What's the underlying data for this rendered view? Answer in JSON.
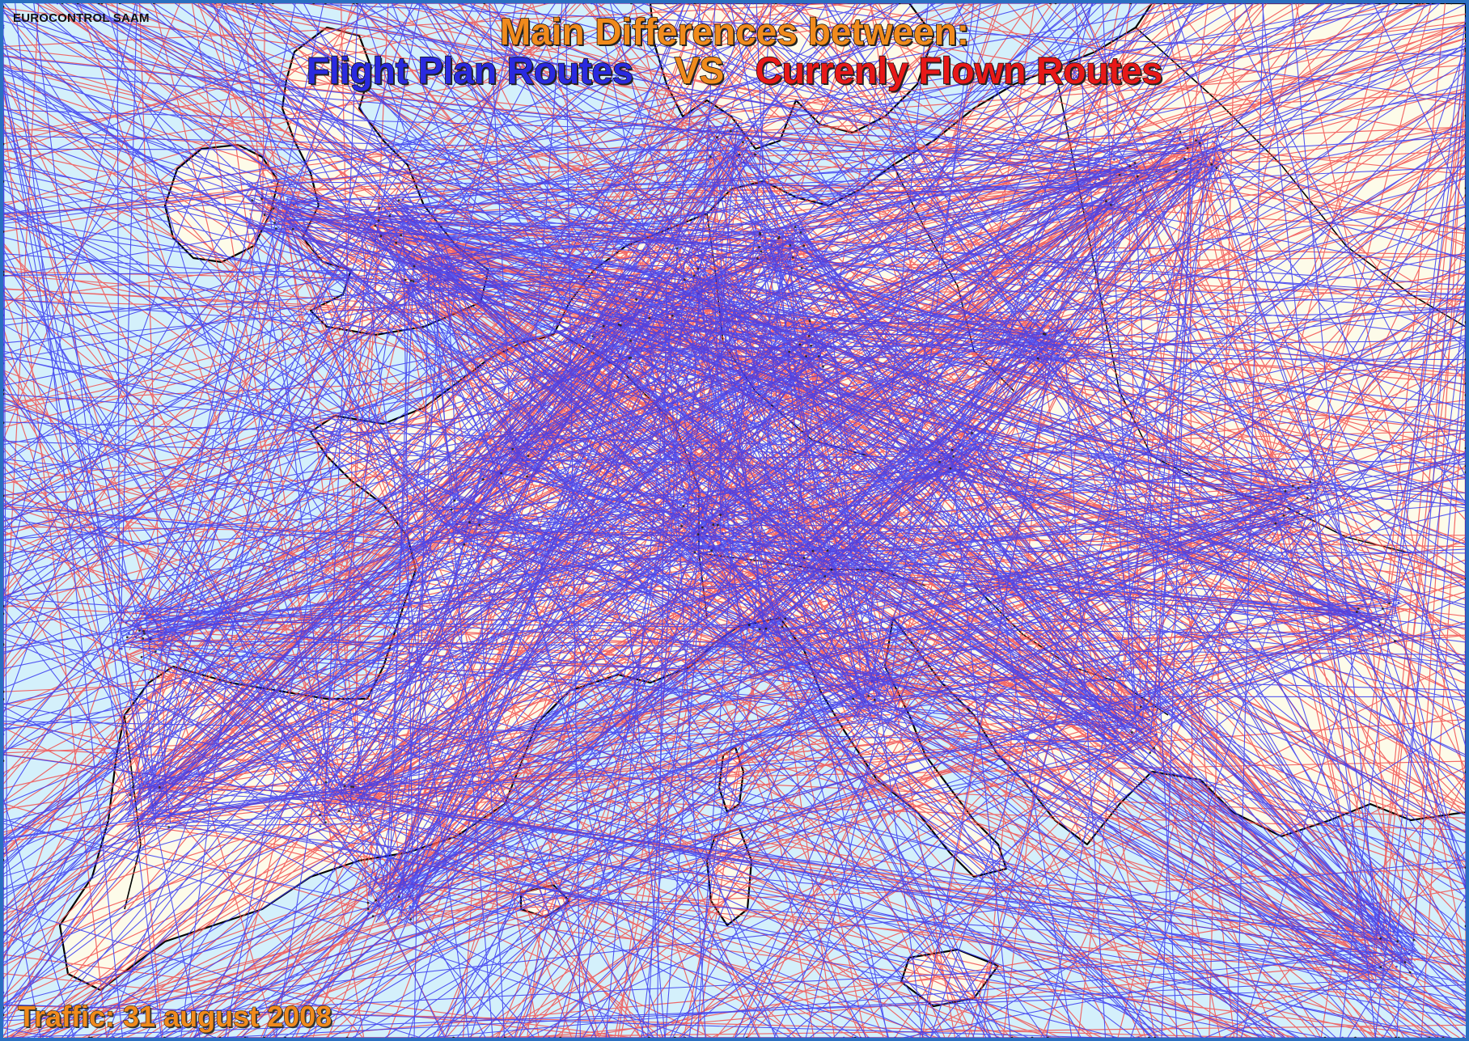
{
  "source_label": "EUROCONTROL SAAM",
  "title": {
    "line1": "Main Differences between:",
    "flight_plan": "Flight Plan Routes",
    "vs": "VS",
    "flown": "Currenly Flown Routes"
  },
  "traffic_label": "Traffic: 31 august 2008",
  "colors": {
    "sea": "#d4f0fb",
    "land": "#fdfbe9",
    "borders": "#000000",
    "flight_plan_routes": "#3a3af0",
    "flown_routes": "#f25050",
    "title_accent": "#f08a1c"
  }
}
